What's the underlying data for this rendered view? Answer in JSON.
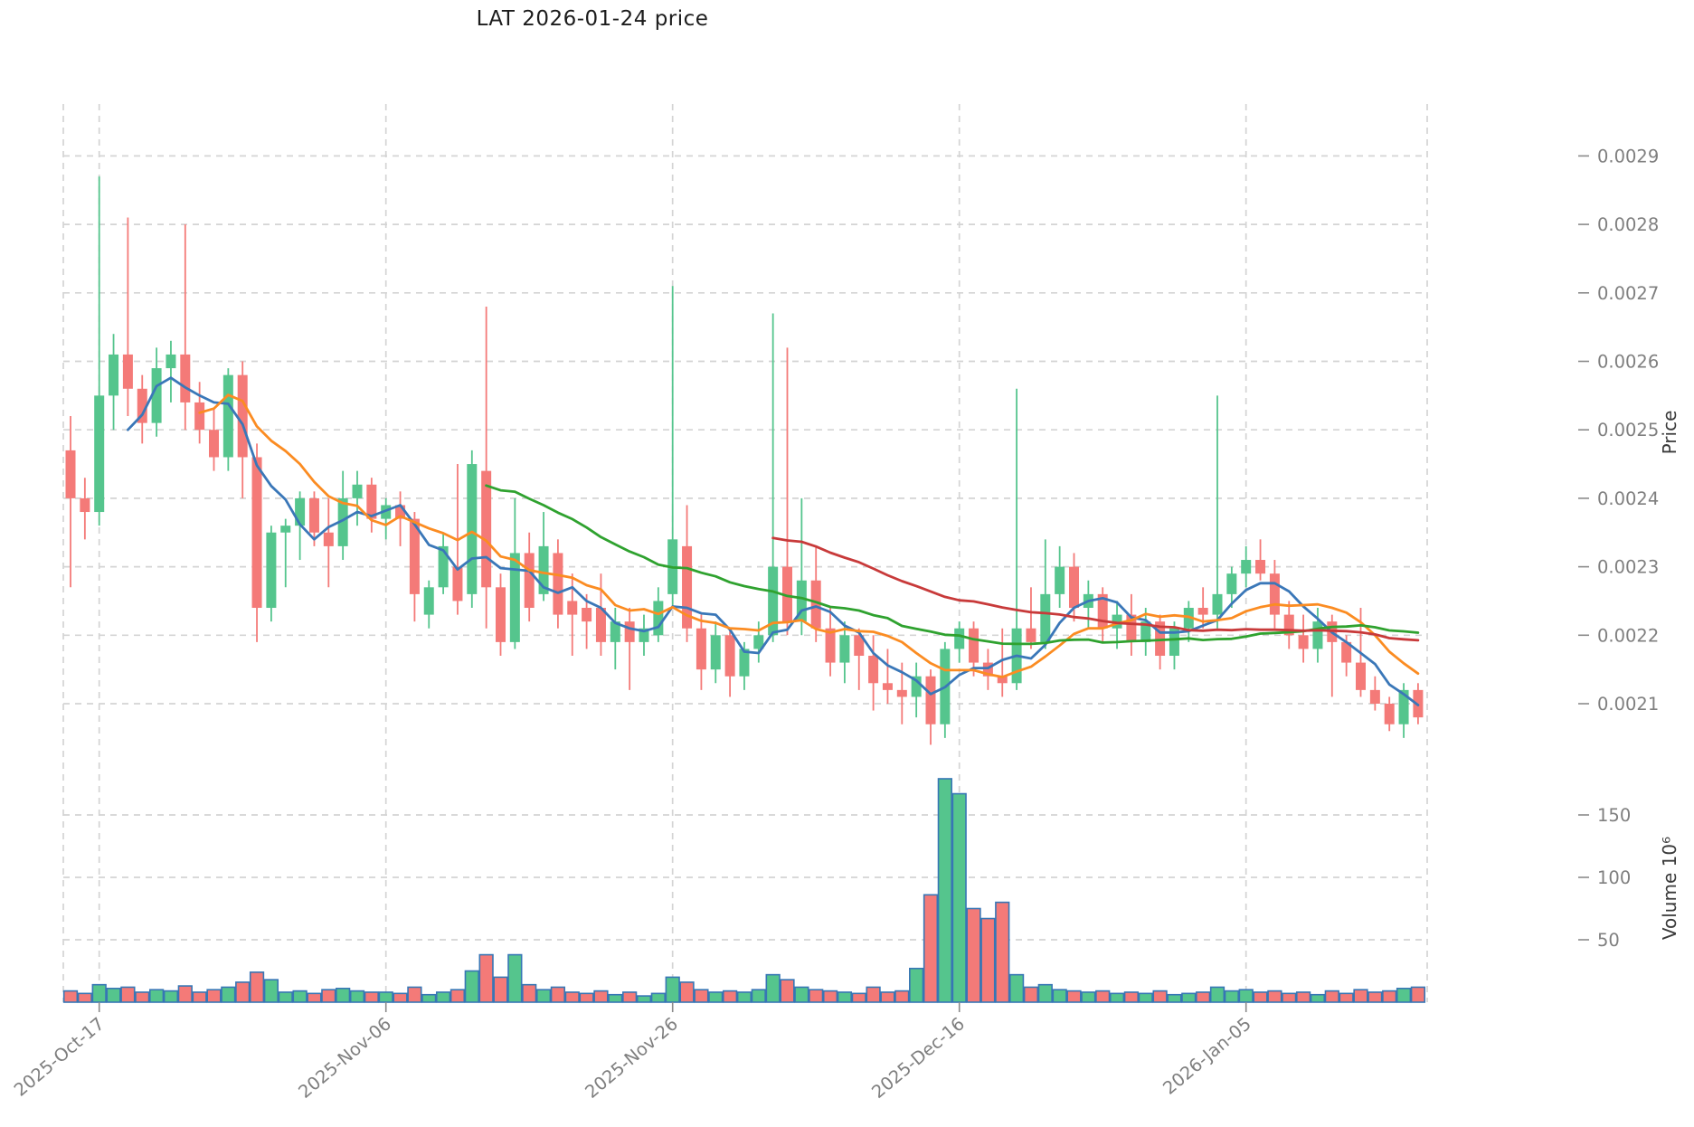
{
  "title": "LAT  2026-01-24  price",
  "chart_data": {
    "type": "candlestick",
    "symbol": "LAT",
    "as_of_date": "2026-01-24",
    "title": "LAT  2026-01-24  price",
    "legend_position": "none",
    "grid": true,
    "price_axis": {
      "label": "Price",
      "side": "right",
      "tick_values": [
        0.0021,
        0.0022,
        0.0023,
        0.0024,
        0.0025,
        0.0026,
        0.0027,
        0.0028,
        0.0029
      ],
      "range": [
        0.00203,
        0.00292
      ]
    },
    "volume_axis": {
      "label": "Volume  10⁶",
      "side": "right",
      "unit": "1e6",
      "tick_values": [
        50,
        100,
        150
      ],
      "range": [
        0,
        212
      ]
    },
    "x_axis": {
      "tick_labels": [
        "2025-Oct-17",
        "2025-Nov-06",
        "2025-Nov-26",
        "2025-Dec-16",
        "2026-Jan-05"
      ],
      "tick_candle_indices": [
        2,
        22,
        42,
        62,
        82
      ],
      "candles_per_tick": 20
    },
    "moving_averages": [
      {
        "window": 5,
        "color": "#3a77b8"
      },
      {
        "window": 10,
        "color": "#fb8c22"
      },
      {
        "window": 30,
        "color": "#2fa22f"
      },
      {
        "window": 50,
        "color": "#c83a3a"
      }
    ],
    "price_scale": 1e-05,
    "candles_ohlc": [
      [
        247,
        252,
        227,
        240
      ],
      [
        240,
        243,
        234,
        238
      ],
      [
        238,
        287,
        236,
        255
      ],
      [
        255,
        264,
        250,
        261
      ],
      [
        261,
        281,
        252,
        256
      ],
      [
        256,
        258,
        248,
        251
      ],
      [
        251,
        262,
        249,
        259
      ],
      [
        259,
        263,
        254,
        261
      ],
      [
        261,
        280,
        250,
        254
      ],
      [
        254,
        257,
        248,
        250
      ],
      [
        250,
        253,
        244,
        246
      ],
      [
        246,
        259,
        244,
        258
      ],
      [
        258,
        260,
        240,
        246
      ],
      [
        246,
        248,
        219,
        224
      ],
      [
        224,
        236,
        222,
        235
      ],
      [
        235,
        237,
        227,
        236
      ],
      [
        236,
        241,
        231,
        240
      ],
      [
        240,
        241,
        233,
        235
      ],
      [
        235,
        240,
        227,
        233
      ],
      [
        233,
        244,
        231,
        240
      ],
      [
        240,
        244,
        236,
        242
      ],
      [
        242,
        243,
        235,
        237
      ],
      [
        237,
        240,
        234,
        239
      ],
      [
        239,
        241,
        233,
        237
      ],
      [
        237,
        238,
        222,
        226
      ],
      [
        223,
        228,
        221,
        227
      ],
      [
        227,
        235,
        226,
        233
      ],
      [
        230,
        245,
        223,
        225
      ],
      [
        226,
        247,
        224,
        245
      ],
      [
        244,
        268,
        221,
        227
      ],
      [
        227,
        229,
        217,
        219
      ],
      [
        219,
        240,
        218,
        232
      ],
      [
        232,
        235,
        222,
        224
      ],
      [
        226,
        238,
        225,
        233
      ],
      [
        232,
        234,
        221,
        223
      ],
      [
        225,
        229,
        217,
        223
      ],
      [
        224,
        226,
        218,
        222
      ],
      [
        224,
        229,
        217,
        219
      ],
      [
        219,
        224,
        215,
        222
      ],
      [
        222,
        224,
        212,
        219
      ],
      [
        219,
        223,
        217,
        221
      ],
      [
        220,
        227,
        219,
        225
      ],
      [
        226,
        271,
        224,
        234
      ],
      [
        233,
        239,
        219,
        221
      ],
      [
        221,
        223,
        212,
        215
      ],
      [
        215,
        222,
        213,
        220
      ],
      [
        220,
        221,
        211,
        214
      ],
      [
        214,
        219,
        212,
        218
      ],
      [
        218,
        222,
        216,
        220
      ],
      [
        220,
        267,
        219,
        230
      ],
      [
        230,
        262,
        220,
        222
      ],
      [
        222,
        240,
        220,
        228
      ],
      [
        228,
        233,
        219,
        221
      ],
      [
        221,
        224,
        214,
        216
      ],
      [
        216,
        222,
        213,
        220
      ],
      [
        220,
        221,
        212,
        217
      ],
      [
        217,
        220,
        209,
        213
      ],
      [
        213,
        218,
        210,
        212
      ],
      [
        212,
        216,
        207,
        211
      ],
      [
        211,
        216,
        208,
        214
      ],
      [
        214,
        215,
        204,
        207
      ],
      [
        207,
        219,
        205,
        218
      ],
      [
        218,
        222,
        216,
        221
      ],
      [
        221,
        222,
        214,
        216
      ],
      [
        216,
        218,
        212,
        214
      ],
      [
        214,
        221,
        211,
        213
      ],
      [
        213,
        256,
        212,
        221
      ],
      [
        221,
        227,
        218,
        219
      ],
      [
        219,
        234,
        218,
        226
      ],
      [
        226,
        233,
        224,
        230
      ],
      [
        230,
        232,
        222,
        224
      ],
      [
        224,
        228,
        221,
        226
      ],
      [
        226,
        227,
        219,
        221
      ],
      [
        221,
        225,
        218,
        223
      ],
      [
        223,
        226,
        217,
        219
      ],
      [
        219,
        224,
        217,
        222
      ],
      [
        222,
        223,
        215,
        217
      ],
      [
        217,
        222,
        215,
        221
      ],
      [
        221,
        225,
        219,
        224
      ],
      [
        224,
        227,
        221,
        223
      ],
      [
        223,
        255,
        221,
        226
      ],
      [
        226,
        230,
        224,
        229
      ],
      [
        229,
        233,
        227,
        231
      ],
      [
        231,
        234,
        228,
        229
      ],
      [
        229,
        231,
        221,
        223
      ],
      [
        223,
        225,
        218,
        220
      ],
      [
        220,
        223,
        216,
        218
      ],
      [
        218,
        224,
        216,
        222
      ],
      [
        222,
        223,
        211,
        219
      ],
      [
        219,
        220,
        214,
        216
      ],
      [
        216,
        224,
        211,
        212
      ],
      [
        212,
        214,
        209,
        210
      ],
      [
        210,
        211,
        206,
        207
      ],
      [
        207,
        213,
        205,
        212
      ],
      [
        212,
        213,
        207,
        208
      ]
    ],
    "volumes_millions": [
      9,
      7,
      14,
      11,
      12,
      8,
      10,
      9,
      13,
      8,
      10,
      12,
      16,
      24,
      18,
      8,
      9,
      7,
      10,
      11,
      9,
      8,
      8,
      7,
      12,
      6,
      8,
      10,
      25,
      38,
      20,
      38,
      14,
      10,
      12,
      8,
      7,
      9,
      6,
      8,
      5,
      7,
      20,
      16,
      10,
      8,
      9,
      8,
      10,
      22,
      18,
      12,
      10,
      9,
      8,
      7,
      12,
      8,
      9,
      27,
      86,
      179,
      167,
      75,
      67,
      80,
      22,
      12,
      14,
      10,
      9,
      8,
      9,
      7,
      8,
      7,
      9,
      6,
      7,
      8,
      12,
      9,
      10,
      8,
      9,
      7,
      8,
      6,
      9,
      7,
      10,
      8,
      9,
      11,
      12
    ],
    "colors": {
      "up": "#55c58d",
      "down": "#f47a78",
      "volume_bar_border": "#3776b5",
      "grid": "#d4d4d4",
      "tick_label": "#7f7f7f",
      "axis_title": "#3a3a3a",
      "title_text": "#1c1c1c",
      "tick_mark": "#8a8a8a"
    }
  }
}
